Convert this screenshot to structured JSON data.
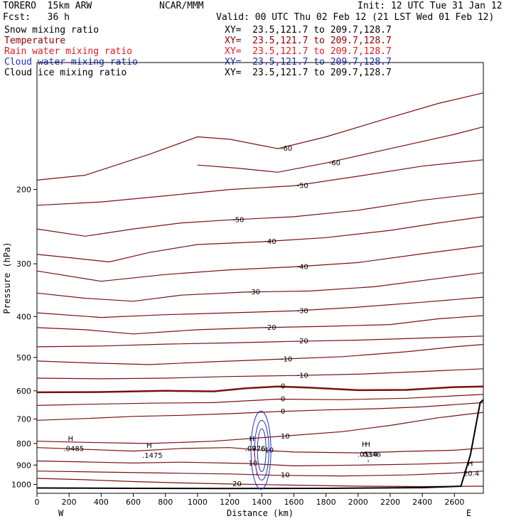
{
  "header": {
    "model": "TORERO  15km ARW",
    "org": "NCAR/MMM",
    "init": "Init: 12 UTC Tue 31 Jan 12",
    "fcst": "Fcst:   36 h",
    "valid": "Valid: 00 UTC Thu 02 Feb 12 (21 LST Wed 01 Feb 12)"
  },
  "legend": [
    {
      "label": "Snow mixing ratio",
      "xy": "XY=  23.5,121.7 to 209.7,128.7",
      "color": "#000000"
    },
    {
      "label": "Temperature",
      "xy": "XY=  23.5,121.7 to 209.7,128.7",
      "color": "#8b0000"
    },
    {
      "label": "Rain water mixing ratio",
      "xy": "XY=  23.5,121.7 to 209.7,128.7",
      "color": "#e41a1c"
    },
    {
      "label": "Cloud water mixing ratio",
      "xy": "XY=  23.5,121.7 to 209.7,128.7",
      "color": "#1f2fbf"
    },
    {
      "label": "Cloud ice mixing ratio",
      "xy": "XY=  23.5,121.7 to 209.7,128.7",
      "color": "#000000"
    }
  ],
  "chart_data": {
    "type": "line",
    "xlabel": "Distance (km)",
    "ylabel": "Pressure (hPa)",
    "xlim": [
      0,
      2780
    ],
    "ylim": [
      1050,
      100
    ],
    "yscale": "log",
    "x_ticks": [
      0,
      200,
      400,
      600,
      800,
      1000,
      1200,
      1400,
      1600,
      1800,
      2000,
      2200,
      2400,
      2600
    ],
    "y_ticks": [
      200,
      300,
      400,
      500,
      600,
      700,
      800,
      900,
      1000
    ],
    "x_end_labels": {
      "left": "W",
      "right": "E"
    },
    "temperature_contours": [
      {
        "level": -60,
        "label": "-60",
        "points": [
          [
            0,
            190
          ],
          [
            300,
            185
          ],
          [
            700,
            165
          ],
          [
            1000,
            150
          ],
          [
            1200,
            152
          ],
          [
            1500,
            160
          ],
          [
            1800,
            150
          ],
          [
            2200,
            135
          ],
          [
            2500,
            125
          ],
          [
            2780,
            118
          ]
        ]
      },
      {
        "level": -60,
        "label": "-60",
        "points": [
          [
            1000,
            175
          ],
          [
            1250,
            178
          ],
          [
            1500,
            182
          ],
          [
            1800,
            173
          ],
          [
            2200,
            160
          ],
          [
            2600,
            148
          ],
          [
            2780,
            142
          ]
        ]
      },
      {
        "level": -50,
        "label": "-50",
        "points": [
          [
            0,
            218
          ],
          [
            400,
            214
          ],
          [
            800,
            207
          ],
          [
            1200,
            200
          ],
          [
            1600,
            196
          ],
          [
            2000,
            186
          ],
          [
            2400,
            176
          ],
          [
            2780,
            170
          ]
        ]
      },
      {
        "level": -50,
        "label": "-50",
        "points": [
          [
            0,
            248
          ],
          [
            300,
            258
          ],
          [
            600,
            248
          ],
          [
            900,
            240
          ],
          [
            1200,
            236
          ],
          [
            1600,
            232
          ],
          [
            2000,
            224
          ],
          [
            2400,
            212
          ],
          [
            2780,
            204
          ]
        ]
      },
      {
        "level": -40,
        "label": "-40",
        "points": [
          [
            0,
            285
          ],
          [
            200,
            290
          ],
          [
            450,
            297
          ],
          [
            700,
            282
          ],
          [
            1000,
            270
          ],
          [
            1400,
            266
          ],
          [
            1800,
            260
          ],
          [
            2200,
            250
          ],
          [
            2500,
            240
          ],
          [
            2780,
            232
          ]
        ]
      },
      {
        "level": -40,
        "label": "-40",
        "points": [
          [
            0,
            312
          ],
          [
            400,
            330
          ],
          [
            800,
            318
          ],
          [
            1200,
            310
          ],
          [
            1600,
            305
          ],
          [
            2000,
            298
          ],
          [
            2400,
            284
          ],
          [
            2780,
            272
          ]
        ]
      },
      {
        "level": -30,
        "label": "-30",
        "points": [
          [
            0,
            352
          ],
          [
            300,
            362
          ],
          [
            600,
            368
          ],
          [
            900,
            356
          ],
          [
            1300,
            350
          ],
          [
            1700,
            348
          ],
          [
            2100,
            340
          ],
          [
            2500,
            325
          ],
          [
            2780,
            315
          ]
        ]
      },
      {
        "level": -30,
        "label": "-30",
        "points": [
          [
            0,
            392
          ],
          [
            400,
            402
          ],
          [
            800,
            396
          ],
          [
            1200,
            392
          ],
          [
            1600,
            388
          ],
          [
            2000,
            380
          ],
          [
            2400,
            370
          ],
          [
            2780,
            360
          ]
        ]
      },
      {
        "level": -20,
        "label": "-20",
        "points": [
          [
            0,
            425
          ],
          [
            300,
            430
          ],
          [
            600,
            440
          ],
          [
            1000,
            430
          ],
          [
            1400,
            425
          ],
          [
            1800,
            422
          ],
          [
            2200,
            418
          ],
          [
            2500,
            405
          ],
          [
            2780,
            398
          ]
        ]
      },
      {
        "level": -20,
        "label": "-20",
        "points": [
          [
            0,
            472
          ],
          [
            400,
            470
          ],
          [
            800,
            465
          ],
          [
            1200,
            462
          ],
          [
            1600,
            458
          ],
          [
            2000,
            455
          ],
          [
            2400,
            450
          ],
          [
            2780,
            445
          ]
        ]
      },
      {
        "level": -10,
        "label": "-10",
        "points": [
          [
            0,
            510
          ],
          [
            300,
            515
          ],
          [
            700,
            520
          ],
          [
            1100,
            512
          ],
          [
            1500,
            505
          ],
          [
            1900,
            498
          ],
          [
            2300,
            485
          ],
          [
            2600,
            472
          ],
          [
            2780,
            466
          ]
        ]
      },
      {
        "level": -10,
        "label": "-10",
        "points": [
          [
            0,
            560
          ],
          [
            400,
            562
          ],
          [
            800,
            560
          ],
          [
            1200,
            555
          ],
          [
            1600,
            552
          ],
          [
            2000,
            548
          ],
          [
            2400,
            540
          ],
          [
            2780,
            532
          ]
        ]
      },
      {
        "level": 0,
        "label": "0",
        "bold": true,
        "points": [
          [
            0,
            605
          ],
          [
            400,
            604
          ],
          [
            800,
            600
          ],
          [
            1100,
            602
          ],
          [
            1300,
            592
          ],
          [
            1500,
            586
          ],
          [
            1700,
            590
          ],
          [
            2000,
            598
          ],
          [
            2300,
            597
          ],
          [
            2600,
            588
          ],
          [
            2780,
            586
          ]
        ]
      },
      {
        "level": 0,
        "label": "0",
        "points": [
          [
            0,
            650
          ],
          [
            300,
            646
          ],
          [
            700,
            642
          ],
          [
            1100,
            640
          ],
          [
            1500,
            628
          ],
          [
            1900,
            630
          ],
          [
            2300,
            625
          ],
          [
            2780,
            612
          ]
        ]
      },
      {
        "level": 0,
        "label": "0",
        "points": [
          [
            0,
            705
          ],
          [
            300,
            698
          ],
          [
            600,
            690
          ],
          [
            900,
            686
          ],
          [
            1200,
            680
          ],
          [
            1500,
            672
          ],
          [
            1800,
            666
          ],
          [
            2100,
            662
          ],
          [
            2400,
            655
          ],
          [
            2780,
            640
          ]
        ]
      },
      {
        "level": 10,
        "label": "10",
        "points": [
          [
            0,
            790
          ],
          [
            300,
            795
          ],
          [
            700,
            800
          ],
          [
            1100,
            790
          ],
          [
            1500,
            770
          ],
          [
            1900,
            750
          ],
          [
            2200,
            725
          ],
          [
            2500,
            695
          ],
          [
            2780,
            675
          ]
        ]
      },
      {
        "level": 10,
        "label": "10",
        "points": [
          [
            0,
            818
          ],
          [
            300,
            826
          ],
          [
            600,
            834
          ],
          [
            900,
            822
          ],
          [
            1200,
            818
          ],
          [
            1400,
            830
          ],
          [
            1600,
            838
          ],
          [
            2000,
            842
          ],
          [
            2300,
            835
          ],
          [
            2600,
            830
          ],
          [
            2780,
            820
          ]
        ]
      },
      {
        "level": 10,
        "label": "10",
        "points": [
          [
            0,
            880
          ],
          [
            300,
            885
          ],
          [
            600,
            890
          ],
          [
            900,
            886
          ],
          [
            1300,
            892
          ],
          [
            1600,
            904
          ],
          [
            2000,
            900
          ],
          [
            2400,
            895
          ],
          [
            2780,
            885
          ]
        ]
      },
      {
        "level": 10,
        "label": "10",
        "points": [
          [
            0,
            930
          ],
          [
            400,
            935
          ],
          [
            800,
            940
          ],
          [
            1200,
            945
          ],
          [
            1500,
            952
          ],
          [
            1900,
            955
          ],
          [
            2300,
            950
          ],
          [
            2600,
            940
          ],
          [
            2780,
            930
          ]
        ]
      },
      {
        "level": 20,
        "label": "20",
        "points": [
          [
            0,
            968
          ],
          [
            300,
            975
          ],
          [
            600,
            985
          ],
          [
            900,
            992
          ],
          [
            1200,
            998
          ],
          [
            1600,
            1004
          ],
          [
            2000,
            1010
          ],
          [
            2400,
            1012
          ],
          [
            2780,
            1010
          ]
        ]
      }
    ],
    "extrema": [
      {
        "type": "H",
        "x": 210,
        "p": 815,
        "value": ".0485",
        "color": "#1f2fbf"
      },
      {
        "type": "H",
        "x": 700,
        "p": 845,
        "value": ".1475",
        "color": "#1f2fbf"
      },
      {
        "type": "H",
        "x": 1340,
        "p": 815,
        "value": ".0976",
        "color": "#e41a1c"
      },
      {
        "type": "H",
        "x": 1340,
        "p": 815,
        "value": ".0776",
        "color": "#1f2fbf"
      },
      {
        "type": "H",
        "x": 2040,
        "p": 840,
        "value": ".0514",
        "color": "#1f2fbf"
      },
      {
        "type": "H",
        "x": 2060,
        "p": 840,
        "value": ".0346",
        "color": "#e41a1c"
      },
      {
        "type": "H",
        "x": 2700,
        "p": 932,
        "value": "20.4",
        "color": "#8b0000"
      }
    ]
  }
}
